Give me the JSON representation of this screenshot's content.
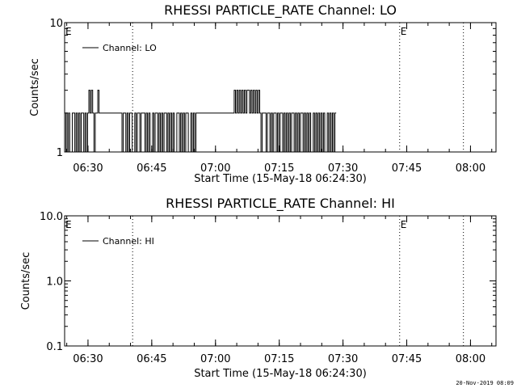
{
  "footer_timestamp": "20-Nov-2019 08:09",
  "chart_data": [
    {
      "type": "line",
      "title": "RHESSI PARTICLE_RATE Channel: LO",
      "xlabel": "Start Time (15-May-18 06:24:30)",
      "ylabel": "Counts/sec",
      "y_scale": "log",
      "ylim": [
        1,
        10
      ],
      "xlim": [
        "06:24:30",
        "08:06:00"
      ],
      "x_ticks": [
        "06:30",
        "06:45",
        "07:00",
        "07:15",
        "07:30",
        "07:45",
        "08:00"
      ],
      "y_ticks": [
        "1",
        "10"
      ],
      "legend": {
        "label": "Channel: LO",
        "placement": "top-left"
      },
      "markers": [
        {
          "label": "E",
          "time": "06:24:30",
          "style": "solid"
        },
        {
          "label": "",
          "time": "06:40:30",
          "style": "dotted"
        },
        {
          "label": "E",
          "time": "07:43:20",
          "style": "dotted"
        },
        {
          "label": "",
          "time": "07:58:20",
          "style": "dotted"
        }
      ],
      "grid": false,
      "series": [
        {
          "name": "Channel: LO",
          "segments": [
            {
              "start": "06:24:30",
              "step_minutes": 0.3,
              "values": [
                1,
                2,
                1,
                2,
                1,
                1,
                2,
                2,
                1,
                2,
                1,
                2,
                1,
                2,
                2,
                1,
                2,
                1,
                2,
                3,
                2,
                3,
                2,
                1,
                2,
                2,
                3,
                2,
                2,
                2,
                2,
                2,
                2,
                2,
                2,
                2,
                2,
                2,
                2,
                2,
                2,
                2,
                2,
                2,
                2,
                1,
                2,
                2,
                1,
                2,
                1,
                2,
                2,
                1,
                1,
                2,
                1,
                2,
                2,
                1,
                2,
                2,
                2,
                1,
                2,
                1,
                2,
                1,
                1,
                2,
                1,
                2,
                2,
                1,
                2,
                1,
                2,
                1,
                2,
                2,
                1,
                2,
                1,
                2,
                1,
                2,
                1,
                1,
                2,
                2,
                1,
                2,
                1,
                2,
                1,
                2,
                2,
                1,
                1,
                2,
                1,
                2,
                1,
                2,
                2,
                2,
                2,
                2,
                2,
                2,
                2,
                2,
                2,
                2,
                2,
                2,
                2,
                2,
                2,
                2,
                2,
                2,
                2,
                2,
                2,
                2,
                2,
                2,
                2,
                2,
                2,
                2,
                2,
                3,
                2,
                3,
                2,
                3,
                2,
                3,
                2,
                3,
                2,
                3,
                3,
                2,
                3,
                2,
                3,
                2,
                3,
                2,
                3,
                2,
                1,
                2,
                2,
                2,
                1,
                2,
                2,
                1,
                2,
                1,
                2,
                2,
                1,
                2,
                1,
                2,
                2,
                1,
                2,
                1,
                2,
                1,
                2,
                1,
                2,
                2,
                1,
                2,
                1,
                2,
                1,
                2,
                2,
                1,
                2,
                1,
                2,
                1,
                2,
                1,
                1,
                2,
                1,
                2,
                1,
                2,
                1,
                2,
                1,
                2,
                1,
                1,
                2,
                1,
                2,
                1,
                2,
                1,
                2
              ]
            }
          ]
        }
      ]
    },
    {
      "type": "line",
      "title": "RHESSI PARTICLE_RATE Channel: HI",
      "xlabel": "Start Time (15-May-18 06:24:30)",
      "ylabel": "Counts/sec",
      "y_scale": "log",
      "ylim": [
        0.1,
        10
      ],
      "xlim": [
        "06:24:30",
        "08:06:00"
      ],
      "x_ticks": [
        "06:30",
        "06:45",
        "07:00",
        "07:15",
        "07:30",
        "07:45",
        "08:00"
      ],
      "y_ticks": [
        "0.1",
        "1.0",
        "10.0"
      ],
      "legend": {
        "label": "Channel: HI",
        "placement": "top-left"
      },
      "markers": [
        {
          "label": "E",
          "time": "06:24:30",
          "style": "solid"
        },
        {
          "label": "",
          "time": "06:40:30",
          "style": "dotted"
        },
        {
          "label": "E",
          "time": "07:43:20",
          "style": "dotted"
        },
        {
          "label": "",
          "time": "07:58:20",
          "style": "dotted"
        }
      ],
      "grid": false,
      "series": [
        {
          "name": "Channel: HI",
          "segments": []
        }
      ]
    }
  ]
}
